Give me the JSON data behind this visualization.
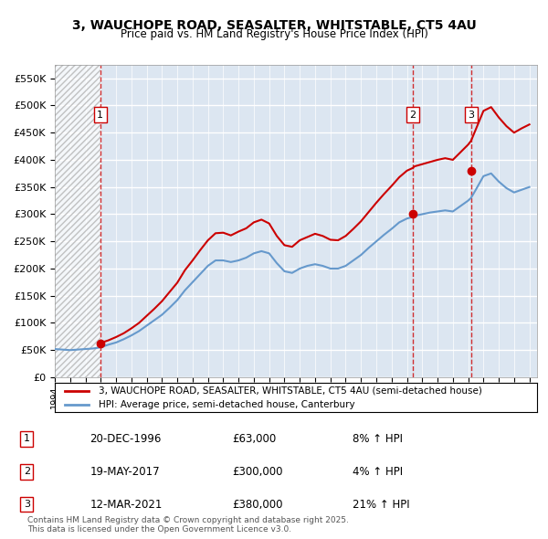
{
  "title": "3, WAUCHOPE ROAD, SEASALTER, WHITSTABLE, CT5 4AU",
  "subtitle": "Price paid vs. HM Land Registry's House Price Index (HPI)",
  "ylabel": "",
  "xlabel": "",
  "ylim": [
    0,
    575000
  ],
  "yticks": [
    0,
    50000,
    100000,
    150000,
    200000,
    250000,
    300000,
    350000,
    400000,
    450000,
    500000,
    550000
  ],
  "ytick_labels": [
    "£0",
    "£50K",
    "£100K",
    "£150K",
    "£200K",
    "£250K",
    "£300K",
    "£350K",
    "£400K",
    "£450K",
    "£500K",
    "£550K"
  ],
  "xmin": 1994.0,
  "xmax": 2025.5,
  "hatch_end_year": 1996.96,
  "transactions": [
    {
      "year": 1996.97,
      "price": 63000,
      "label": "1",
      "date": "20-DEC-1996",
      "pct": "8%"
    },
    {
      "year": 2017.38,
      "price": 300000,
      "label": "2",
      "date": "19-MAY-2017",
      "pct": "4%"
    },
    {
      "year": 2021.19,
      "price": 380000,
      "label": "3",
      "date": "12-MAR-2021",
      "pct": "21%"
    }
  ],
  "legend_line1": "3, WAUCHOPE ROAD, SEASALTER, WHITSTABLE, CT5 4AU (semi-detached house)",
  "legend_line2": "HPI: Average price, semi-detached house, Canterbury",
  "copyright": "Contains HM Land Registry data © Crown copyright and database right 2025.\nThis data is licensed under the Open Government Licence v3.0.",
  "red_color": "#cc0000",
  "blue_color": "#6699cc",
  "bg_color": "#dce6f1",
  "hatch_color": "#c0c0c0",
  "grid_color": "#ffffff",
  "hpi_line": {
    "years": [
      1994.0,
      1994.5,
      1995.0,
      1995.5,
      1996.0,
      1996.5,
      1996.97,
      1997.5,
      1998.0,
      1998.5,
      1999.0,
      1999.5,
      2000.0,
      2000.5,
      2001.0,
      2001.5,
      2002.0,
      2002.5,
      2003.0,
      2003.5,
      2004.0,
      2004.5,
      2005.0,
      2005.5,
      2006.0,
      2006.5,
      2007.0,
      2007.5,
      2008.0,
      2008.5,
      2009.0,
      2009.5,
      2010.0,
      2010.5,
      2011.0,
      2011.5,
      2012.0,
      2012.5,
      2013.0,
      2013.5,
      2014.0,
      2014.5,
      2015.0,
      2015.5,
      2016.0,
      2016.5,
      2017.0,
      2017.38,
      2017.5,
      2018.0,
      2018.5,
      2019.0,
      2019.5,
      2020.0,
      2020.5,
      2021.0,
      2021.19,
      2021.5,
      2022.0,
      2022.5,
      2023.0,
      2023.5,
      2024.0,
      2024.5,
      2025.0
    ],
    "values": [
      52000,
      51000,
      50000,
      51000,
      52000,
      53000,
      55000,
      60000,
      64000,
      70000,
      77000,
      85000,
      95000,
      105000,
      115000,
      128000,
      142000,
      160000,
      175000,
      190000,
      205000,
      215000,
      215000,
      212000,
      215000,
      220000,
      228000,
      232000,
      228000,
      210000,
      195000,
      192000,
      200000,
      205000,
      208000,
      205000,
      200000,
      200000,
      205000,
      215000,
      225000,
      238000,
      250000,
      262000,
      273000,
      285000,
      292000,
      295000,
      297000,
      300000,
      303000,
      305000,
      307000,
      305000,
      315000,
      325000,
      330000,
      345000,
      370000,
      375000,
      360000,
      348000,
      340000,
      345000,
      350000
    ]
  },
  "price_line": {
    "years": [
      1996.97,
      1997.5,
      1998.0,
      1998.5,
      1999.0,
      1999.5,
      2000.0,
      2000.5,
      2001.0,
      2001.5,
      2002.0,
      2002.5,
      2003.0,
      2003.5,
      2004.0,
      2004.5,
      2005.0,
      2005.5,
      2006.0,
      2006.5,
      2007.0,
      2007.5,
      2008.0,
      2008.5,
      2009.0,
      2009.5,
      2010.0,
      2010.5,
      2011.0,
      2011.5,
      2012.0,
      2012.5,
      2013.0,
      2013.5,
      2014.0,
      2014.5,
      2015.0,
      2015.5,
      2016.0,
      2016.5,
      2017.0,
      2017.38,
      2017.5,
      2018.0,
      2018.5,
      2019.0,
      2019.5,
      2020.0,
      2020.5,
      2021.0,
      2021.19,
      2021.5,
      2022.0,
      2022.5,
      2023.0,
      2023.5,
      2024.0,
      2024.5,
      2025.0
    ],
    "values": [
      63000,
      68000,
      74000,
      81000,
      90000,
      100000,
      113000,
      126000,
      140000,
      157000,
      174000,
      197000,
      215000,
      234000,
      252000,
      265000,
      266000,
      261000,
      268000,
      274000,
      285000,
      290000,
      283000,
      260000,
      243000,
      240000,
      252000,
      258000,
      264000,
      260000,
      253000,
      252000,
      260000,
      273000,
      287000,
      304000,
      321000,
      337000,
      352000,
      368000,
      380000,
      385000,
      388000,
      392000,
      396000,
      400000,
      403000,
      400000,
      414000,
      428000,
      435000,
      456000,
      490000,
      497000,
      478000,
      462000,
      450000,
      458000,
      465000
    ]
  }
}
